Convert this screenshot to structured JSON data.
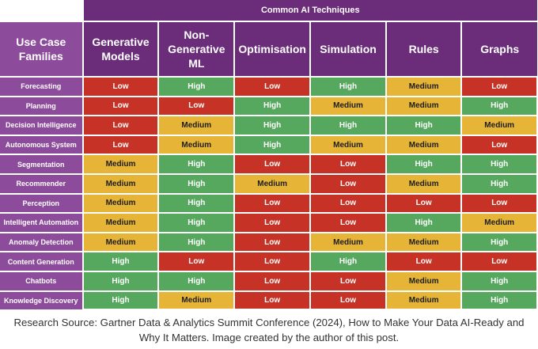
{
  "super_header": "Common AI Techniques",
  "use_case_header": [
    "Use Case",
    "Families"
  ],
  "columns": [
    [
      "Generative",
      "Models"
    ],
    [
      "Non-",
      "Generative",
      "ML"
    ],
    [
      "Optimisation"
    ],
    [
      "Simulation"
    ],
    [
      "Rules"
    ],
    [
      "Graphs"
    ]
  ],
  "rows": [
    {
      "label": "Forecasting",
      "values": [
        "Low",
        "High",
        "Low",
        "High",
        "Medium",
        "Low"
      ]
    },
    {
      "label": "Planning",
      "values": [
        "Low",
        "Low",
        "High",
        "Medium",
        "Medium",
        "High"
      ]
    },
    {
      "label": "Decision Intelligence",
      "values": [
        "Low",
        "Medium",
        "High",
        "High",
        "High",
        "Medium"
      ]
    },
    {
      "label": "Autonomous System",
      "values": [
        "Low",
        "Medium",
        "High",
        "Medium",
        "Medium",
        "Low"
      ]
    },
    {
      "label": "Segmentation",
      "values": [
        "Medium",
        "High",
        "Low",
        "Low",
        "High",
        "High"
      ]
    },
    {
      "label": "Recommender",
      "values": [
        "Medium",
        "High",
        "Medium",
        "Low",
        "Medium",
        "High"
      ]
    },
    {
      "label": "Perception",
      "values": [
        "Medium",
        "High",
        "Low",
        "Low",
        "Low",
        "Low"
      ]
    },
    {
      "label": "Intelligent Automation",
      "values": [
        "Medium",
        "High",
        "Low",
        "Low",
        "High",
        "Medium"
      ]
    },
    {
      "label": "Anomaly Detection",
      "values": [
        "Medium",
        "High",
        "Low",
        "Medium",
        "Medium",
        "High"
      ]
    },
    {
      "label": "Content Generation",
      "values": [
        "High",
        "Low",
        "Low",
        "High",
        "Low",
        "Low"
      ]
    },
    {
      "label": "Chatbots",
      "values": [
        "High",
        "High",
        "Low",
        "Low",
        "Medium",
        "High"
      ]
    },
    {
      "label": "Knowledge Discovery",
      "values": [
        "High",
        "Medium",
        "Low",
        "Low",
        "Medium",
        "High"
      ]
    }
  ],
  "level_colors": {
    "High": "#57a85f",
    "Low": "#c73226",
    "Medium": "#e6b437"
  },
  "header_colors": {
    "dark_purple": "#6b2d79",
    "light_purple": "#8d4c9b"
  },
  "caption": [
    "Research Source: Gartner Data & Analytics Summit Conference (2024), How to Make Your Data AI-Ready and",
    "Why It Matters. Image created by the author of this post."
  ]
}
